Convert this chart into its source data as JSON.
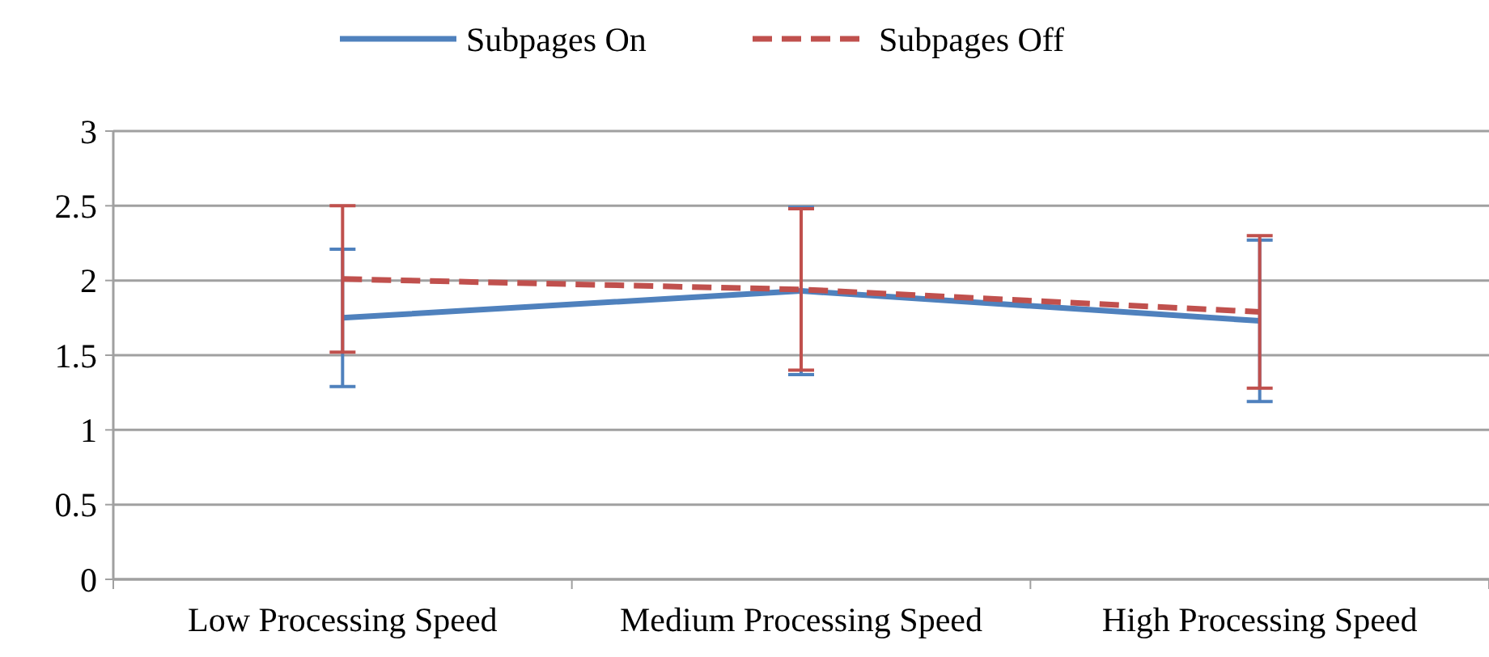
{
  "chart_data": {
    "type": "line",
    "categories": [
      "Low Processing Speed",
      "Medium Processing Speed",
      "High Processing Speed"
    ],
    "series": [
      {
        "name": "Subpages On",
        "color": "#4f81bd",
        "values": [
          1.75,
          1.93,
          1.73
        ],
        "errors": [
          0.46,
          0.56,
          0.54
        ],
        "line_style": "solid"
      },
      {
        "name": "Subpages Off",
        "color": "#c0504d",
        "values": [
          2.01,
          1.94,
          1.79
        ],
        "errors": [
          0.49,
          0.54,
          0.51
        ],
        "line_style": "dashed"
      }
    ],
    "ylim": [
      0,
      3
    ],
    "yticks": [
      0,
      0.5,
      1,
      1.5,
      2,
      2.5,
      3
    ],
    "grid": "y",
    "legend": "top",
    "marker": "none"
  }
}
